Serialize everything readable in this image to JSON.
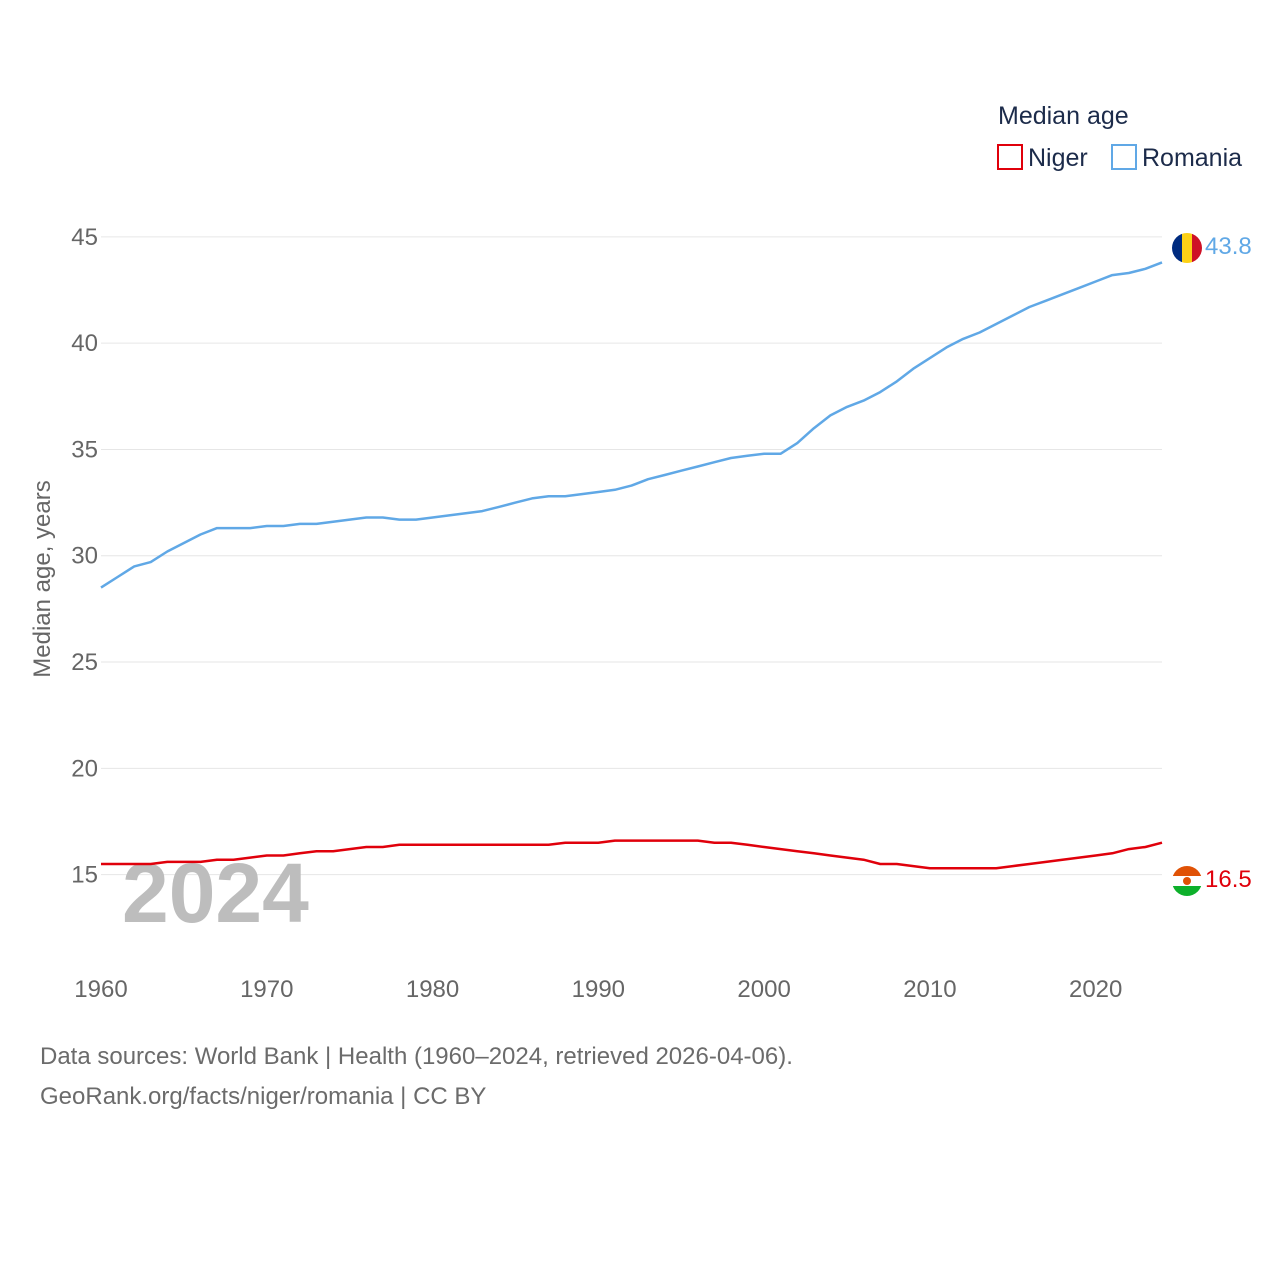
{
  "chart_data": {
    "type": "line",
    "ylabel": "Median age, years",
    "ylim": [
      12.3,
      46.5
    ],
    "xlim": [
      1960,
      2024
    ],
    "yticks": [
      15,
      20,
      25,
      30,
      35,
      40,
      45
    ],
    "xticks": [
      1960,
      1970,
      1980,
      1990,
      2000,
      2010,
      2020
    ],
    "grid": true,
    "legend_title": "Median age",
    "legend_position": "top-right",
    "current_year_label": "2024",
    "x": [
      1960,
      1961,
      1962,
      1963,
      1964,
      1965,
      1966,
      1967,
      1968,
      1969,
      1970,
      1971,
      1972,
      1973,
      1974,
      1975,
      1976,
      1977,
      1978,
      1979,
      1980,
      1981,
      1982,
      1983,
      1984,
      1985,
      1986,
      1987,
      1988,
      1989,
      1990,
      1991,
      1992,
      1993,
      1994,
      1995,
      1996,
      1997,
      1998,
      1999,
      2000,
      2001,
      2002,
      2003,
      2004,
      2005,
      2006,
      2007,
      2008,
      2009,
      2010,
      2011,
      2012,
      2013,
      2014,
      2015,
      2016,
      2017,
      2018,
      2019,
      2020,
      2021,
      2022,
      2023,
      2024
    ],
    "series": [
      {
        "name": "Niger",
        "color": "#e0000b",
        "end_label": "16.5",
        "flag": "niger-flag-icon",
        "values": [
          15.5,
          15.5,
          15.5,
          15.5,
          15.6,
          15.6,
          15.6,
          15.7,
          15.7,
          15.8,
          15.9,
          15.9,
          16.0,
          16.1,
          16.1,
          16.2,
          16.3,
          16.3,
          16.4,
          16.4,
          16.4,
          16.4,
          16.4,
          16.4,
          16.4,
          16.4,
          16.4,
          16.4,
          16.5,
          16.5,
          16.5,
          16.6,
          16.6,
          16.6,
          16.6,
          16.6,
          16.6,
          16.5,
          16.5,
          16.4,
          16.3,
          16.2,
          16.1,
          16.0,
          15.9,
          15.8,
          15.7,
          15.5,
          15.5,
          15.4,
          15.3,
          15.3,
          15.3,
          15.3,
          15.3,
          15.4,
          15.5,
          15.6,
          15.7,
          15.8,
          15.9,
          16.0,
          16.2,
          16.3,
          16.5
        ]
      },
      {
        "name": "Romania",
        "color": "#60a8e6",
        "end_label": "43.8",
        "flag": "romania-flag-icon",
        "values": [
          28.5,
          29.0,
          29.5,
          29.7,
          30.2,
          30.6,
          31.0,
          31.3,
          31.3,
          31.3,
          31.4,
          31.4,
          31.5,
          31.5,
          31.6,
          31.7,
          31.8,
          31.8,
          31.7,
          31.7,
          31.8,
          31.9,
          32.0,
          32.1,
          32.3,
          32.5,
          32.7,
          32.8,
          32.8,
          32.9,
          33.0,
          33.1,
          33.3,
          33.6,
          33.8,
          34.0,
          34.2,
          34.4,
          34.6,
          34.7,
          34.8,
          34.8,
          35.3,
          36.0,
          36.6,
          37.0,
          37.3,
          37.7,
          38.2,
          38.8,
          39.3,
          39.8,
          40.2,
          40.5,
          40.9,
          41.3,
          41.7,
          42.0,
          42.3,
          42.6,
          42.9,
          43.2,
          43.3,
          43.5,
          43.8
        ]
      }
    ]
  },
  "footer": {
    "line1": "Data sources: World Bank | Health (1960–2024, retrieved 2026-04-06).",
    "line2": "GeoRank.org/facts/niger/romania | CC BY"
  }
}
